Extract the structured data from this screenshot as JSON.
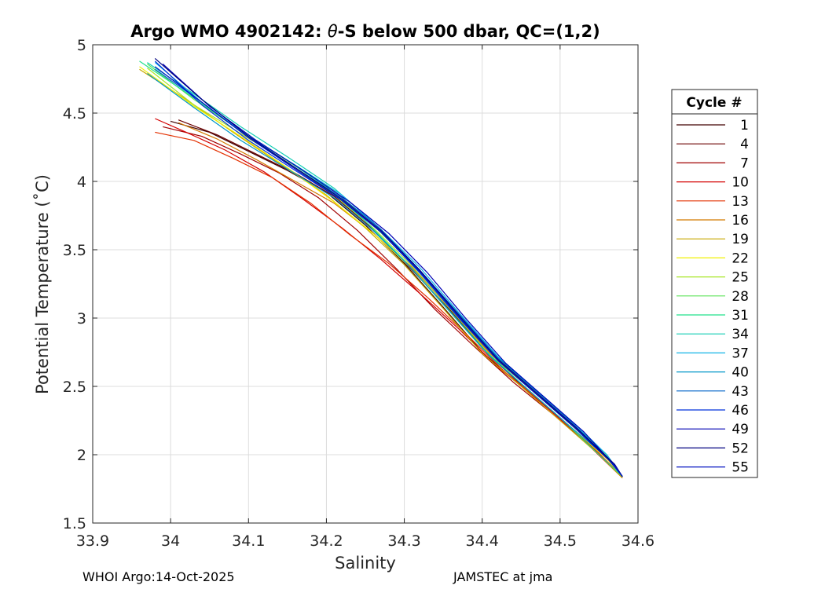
{
  "chart_data": {
    "type": "line",
    "title_prefix": "Argo WMO 4902142: ",
    "title_symbol": "θ",
    "title_suffix": "-S below 500 dbar,  QC=(1,2)",
    "xlabel": "Salinity",
    "ylabel": "Potential Temperature (˚C)",
    "xlim": [
      33.9,
      34.6
    ],
    "ylim": [
      1.5,
      5
    ],
    "xticks": [
      33.9,
      34.0,
      34.1,
      34.2,
      34.3,
      34.4,
      34.5,
      34.6
    ],
    "xtick_labels": [
      "33.9",
      "34",
      "34.1",
      "34.2",
      "34.3",
      "34.4",
      "34.5",
      "34.6"
    ],
    "yticks": [
      1.5,
      2,
      2.5,
      3,
      3.5,
      4,
      4.5,
      5
    ],
    "ytick_labels": [
      "1.5",
      "2",
      "2.5",
      "3",
      "3.5",
      "4",
      "4.5",
      "5"
    ],
    "grid": true,
    "legend_title": "Cycle #",
    "legend_placement": "right-outside",
    "series": [
      {
        "name": "1",
        "color": "#400000",
        "values": [
          [
            34.0,
            4.44
          ],
          [
            34.05,
            4.36
          ],
          [
            34.1,
            4.22
          ],
          [
            34.15,
            4.08
          ],
          [
            34.2,
            3.92
          ],
          [
            34.25,
            3.68
          ],
          [
            34.3,
            3.4
          ],
          [
            34.35,
            3.08
          ],
          [
            34.4,
            2.75
          ],
          [
            34.45,
            2.5
          ],
          [
            34.5,
            2.27
          ],
          [
            34.55,
            2.01
          ],
          [
            34.58,
            1.83
          ]
        ]
      },
      {
        "name": "4",
        "color": "#6b0000",
        "values": [
          [
            34.01,
            4.45
          ],
          [
            34.06,
            4.34
          ],
          [
            34.11,
            4.2
          ],
          [
            34.16,
            4.06
          ],
          [
            34.21,
            3.89
          ],
          [
            34.26,
            3.65
          ],
          [
            34.31,
            3.35
          ],
          [
            34.36,
            3.05
          ],
          [
            34.41,
            2.72
          ],
          [
            34.46,
            2.46
          ],
          [
            34.51,
            2.22
          ],
          [
            34.56,
            1.95
          ],
          [
            34.58,
            1.84
          ]
        ]
      },
      {
        "name": "7",
        "color": "#a00000",
        "values": [
          [
            33.99,
            4.4
          ],
          [
            34.04,
            4.33
          ],
          [
            34.09,
            4.2
          ],
          [
            34.14,
            4.06
          ],
          [
            34.19,
            3.88
          ],
          [
            34.24,
            3.64
          ],
          [
            34.29,
            3.36
          ],
          [
            34.34,
            3.06
          ],
          [
            34.39,
            2.79
          ],
          [
            34.44,
            2.53
          ],
          [
            34.49,
            2.3
          ],
          [
            34.54,
            2.06
          ],
          [
            34.58,
            1.84
          ]
        ]
      },
      {
        "name": "10",
        "color": "#d40000",
        "values": [
          [
            33.98,
            4.46
          ],
          [
            34.02,
            4.36
          ],
          [
            34.07,
            4.23
          ],
          [
            34.12,
            4.07
          ],
          [
            34.17,
            3.87
          ],
          [
            34.22,
            3.66
          ],
          [
            34.27,
            3.43
          ],
          [
            34.32,
            3.18
          ],
          [
            34.37,
            2.92
          ],
          [
            34.42,
            2.64
          ],
          [
            34.47,
            2.41
          ],
          [
            34.52,
            2.16
          ],
          [
            34.58,
            1.83
          ]
        ]
      },
      {
        "name": "13",
        "color": "#e33000",
        "values": [
          [
            33.98,
            4.36
          ],
          [
            34.03,
            4.3
          ],
          [
            34.08,
            4.17
          ],
          [
            34.13,
            4.03
          ],
          [
            34.18,
            3.84
          ],
          [
            34.23,
            3.61
          ],
          [
            34.28,
            3.4
          ],
          [
            34.33,
            3.15
          ],
          [
            34.38,
            2.88
          ],
          [
            34.43,
            2.6
          ],
          [
            34.48,
            2.37
          ],
          [
            34.53,
            2.12
          ],
          [
            34.58,
            1.84
          ]
        ]
      },
      {
        "name": "16",
        "color": "#d37a00",
        "values": [
          [
            34.01,
            4.43
          ],
          [
            34.06,
            4.31
          ],
          [
            34.11,
            4.16
          ],
          [
            34.16,
            4.0
          ],
          [
            34.21,
            3.84
          ],
          [
            34.26,
            3.62
          ],
          [
            34.31,
            3.37
          ],
          [
            34.36,
            3.06
          ],
          [
            34.41,
            2.74
          ],
          [
            34.46,
            2.5
          ],
          [
            34.51,
            2.25
          ],
          [
            34.56,
            1.98
          ],
          [
            34.58,
            1.84
          ]
        ]
      },
      {
        "name": "19",
        "color": "#c8a800",
        "values": [
          [
            33.96,
            4.82
          ],
          [
            34.02,
            4.6
          ],
          [
            34.08,
            4.36
          ],
          [
            34.14,
            4.13
          ],
          [
            34.2,
            3.9
          ],
          [
            34.25,
            3.66
          ],
          [
            34.3,
            3.39
          ],
          [
            34.35,
            3.07
          ],
          [
            34.4,
            2.74
          ],
          [
            34.45,
            2.5
          ],
          [
            34.5,
            2.25
          ],
          [
            34.55,
            2.0
          ],
          [
            34.58,
            1.83
          ]
        ]
      },
      {
        "name": "22",
        "color": "#f0f000",
        "values": [
          [
            33.96,
            4.84
          ],
          [
            34.03,
            4.55
          ],
          [
            34.09,
            4.33
          ],
          [
            34.15,
            4.1
          ],
          [
            34.21,
            3.85
          ],
          [
            34.26,
            3.62
          ],
          [
            34.31,
            3.36
          ],
          [
            34.36,
            3.04
          ],
          [
            34.41,
            2.72
          ],
          [
            34.46,
            2.47
          ],
          [
            34.51,
            2.22
          ],
          [
            34.56,
            1.97
          ],
          [
            34.58,
            1.84
          ]
        ]
      },
      {
        "name": "25",
        "color": "#a8e628",
        "values": [
          [
            33.97,
            4.83
          ],
          [
            34.03,
            4.56
          ],
          [
            34.09,
            4.35
          ],
          [
            34.15,
            4.14
          ],
          [
            34.21,
            3.9
          ],
          [
            34.26,
            3.66
          ],
          [
            34.31,
            3.38
          ],
          [
            34.36,
            3.06
          ],
          [
            34.41,
            2.73
          ],
          [
            34.46,
            2.49
          ],
          [
            34.51,
            2.24
          ],
          [
            34.56,
            1.98
          ],
          [
            34.58,
            1.84
          ]
        ]
      },
      {
        "name": "28",
        "color": "#5fe45a",
        "values": [
          [
            33.97,
            4.86
          ],
          [
            34.03,
            4.6
          ],
          [
            34.09,
            4.37
          ],
          [
            34.15,
            4.15
          ],
          [
            34.21,
            3.93
          ],
          [
            34.26,
            3.68
          ],
          [
            34.31,
            3.4
          ],
          [
            34.36,
            3.08
          ],
          [
            34.41,
            2.76
          ],
          [
            34.46,
            2.5
          ],
          [
            34.51,
            2.25
          ],
          [
            34.56,
            1.99
          ],
          [
            34.58,
            1.84
          ]
        ]
      },
      {
        "name": "31",
        "color": "#22e08c",
        "values": [
          [
            33.96,
            4.88
          ],
          [
            34.02,
            4.65
          ],
          [
            34.08,
            4.41
          ],
          [
            34.14,
            4.19
          ],
          [
            34.2,
            3.96
          ],
          [
            34.25,
            3.71
          ],
          [
            34.3,
            3.42
          ],
          [
            34.35,
            3.1
          ],
          [
            34.4,
            2.78
          ],
          [
            34.45,
            2.52
          ],
          [
            34.5,
            2.27
          ],
          [
            34.55,
            2.0
          ],
          [
            34.58,
            1.84
          ]
        ]
      },
      {
        "name": "34",
        "color": "#13cdb4",
        "values": [
          [
            33.97,
            4.87
          ],
          [
            34.03,
            4.64
          ],
          [
            34.09,
            4.4
          ],
          [
            34.15,
            4.18
          ],
          [
            34.21,
            3.95
          ],
          [
            34.26,
            3.7
          ],
          [
            34.31,
            3.41
          ],
          [
            34.36,
            3.09
          ],
          [
            34.41,
            2.77
          ],
          [
            34.46,
            2.51
          ],
          [
            34.51,
            2.26
          ],
          [
            34.56,
            2.0
          ],
          [
            34.58,
            1.84
          ]
        ]
      },
      {
        "name": "37",
        "color": "#10b4e6",
        "values": [
          [
            33.98,
            4.87
          ],
          [
            34.04,
            4.58
          ],
          [
            34.1,
            4.33
          ],
          [
            34.16,
            4.12
          ],
          [
            34.22,
            3.9
          ],
          [
            34.27,
            3.65
          ],
          [
            34.32,
            3.37
          ],
          [
            34.37,
            3.04
          ],
          [
            34.42,
            2.72
          ],
          [
            34.47,
            2.47
          ],
          [
            34.52,
            2.22
          ],
          [
            34.56,
            2.0
          ],
          [
            34.58,
            1.84
          ]
        ]
      },
      {
        "name": "40",
        "color": "#0096c8",
        "values": [
          [
            33.97,
            4.79
          ],
          [
            34.03,
            4.54
          ],
          [
            34.09,
            4.3
          ],
          [
            34.15,
            4.09
          ],
          [
            34.21,
            3.88
          ],
          [
            34.26,
            3.64
          ],
          [
            34.31,
            3.36
          ],
          [
            34.36,
            3.04
          ],
          [
            34.41,
            2.72
          ],
          [
            34.46,
            2.47
          ],
          [
            34.51,
            2.22
          ],
          [
            34.56,
            1.98
          ],
          [
            34.58,
            1.84
          ]
        ]
      },
      {
        "name": "43",
        "color": "#0064c8",
        "values": [
          [
            33.98,
            4.82
          ],
          [
            34.04,
            4.58
          ],
          [
            34.1,
            4.32
          ],
          [
            34.16,
            4.1
          ],
          [
            34.22,
            3.88
          ],
          [
            34.27,
            3.65
          ],
          [
            34.32,
            3.35
          ],
          [
            34.37,
            3.03
          ],
          [
            34.42,
            2.71
          ],
          [
            34.47,
            2.46
          ],
          [
            34.52,
            2.21
          ],
          [
            34.56,
            1.98
          ],
          [
            34.58,
            1.84
          ]
        ]
      },
      {
        "name": "46",
        "color": "#0032dc",
        "values": [
          [
            33.98,
            4.88
          ],
          [
            34.04,
            4.56
          ],
          [
            34.1,
            4.3
          ],
          [
            34.16,
            4.08
          ],
          [
            34.22,
            3.86
          ],
          [
            34.27,
            3.63
          ],
          [
            34.32,
            3.33
          ],
          [
            34.37,
            3.0
          ],
          [
            34.42,
            2.69
          ],
          [
            34.47,
            2.44
          ],
          [
            34.52,
            2.2
          ],
          [
            34.56,
            1.98
          ],
          [
            34.58,
            1.84
          ]
        ]
      },
      {
        "name": "49",
        "color": "#0000b4",
        "values": [
          [
            33.99,
            4.86
          ],
          [
            34.05,
            4.55
          ],
          [
            34.11,
            4.3
          ],
          [
            34.17,
            4.08
          ],
          [
            34.23,
            3.85
          ],
          [
            34.28,
            3.62
          ],
          [
            34.33,
            3.33
          ],
          [
            34.38,
            2.99
          ],
          [
            34.43,
            2.67
          ],
          [
            34.48,
            2.42
          ],
          [
            34.53,
            2.17
          ],
          [
            34.57,
            1.92
          ],
          [
            34.58,
            1.84
          ]
        ]
      },
      {
        "name": "52",
        "color": "#000080",
        "values": [
          [
            33.98,
            4.9
          ],
          [
            34.04,
            4.6
          ],
          [
            34.1,
            4.33
          ],
          [
            34.16,
            4.1
          ],
          [
            34.22,
            3.87
          ],
          [
            34.27,
            3.64
          ],
          [
            34.32,
            3.35
          ],
          [
            34.37,
            3.02
          ],
          [
            34.42,
            2.7
          ],
          [
            34.47,
            2.45
          ],
          [
            34.52,
            2.2
          ],
          [
            34.57,
            1.93
          ],
          [
            34.58,
            1.84
          ]
        ]
      },
      {
        "name": "55",
        "color": "#0010c0",
        "values": [
          [
            33.98,
            4.84
          ],
          [
            34.04,
            4.58
          ],
          [
            34.1,
            4.32
          ],
          [
            34.16,
            4.09
          ],
          [
            34.22,
            3.86
          ],
          [
            34.27,
            3.63
          ],
          [
            34.32,
            3.34
          ],
          [
            34.37,
            3.01
          ],
          [
            34.42,
            2.69
          ],
          [
            34.47,
            2.44
          ],
          [
            34.52,
            2.19
          ],
          [
            34.57,
            1.92
          ],
          [
            34.58,
            1.84
          ]
        ]
      }
    ]
  },
  "footer": {
    "left": "WHOI Argo:14-Oct-2025",
    "right": "JAMSTEC at jma"
  }
}
